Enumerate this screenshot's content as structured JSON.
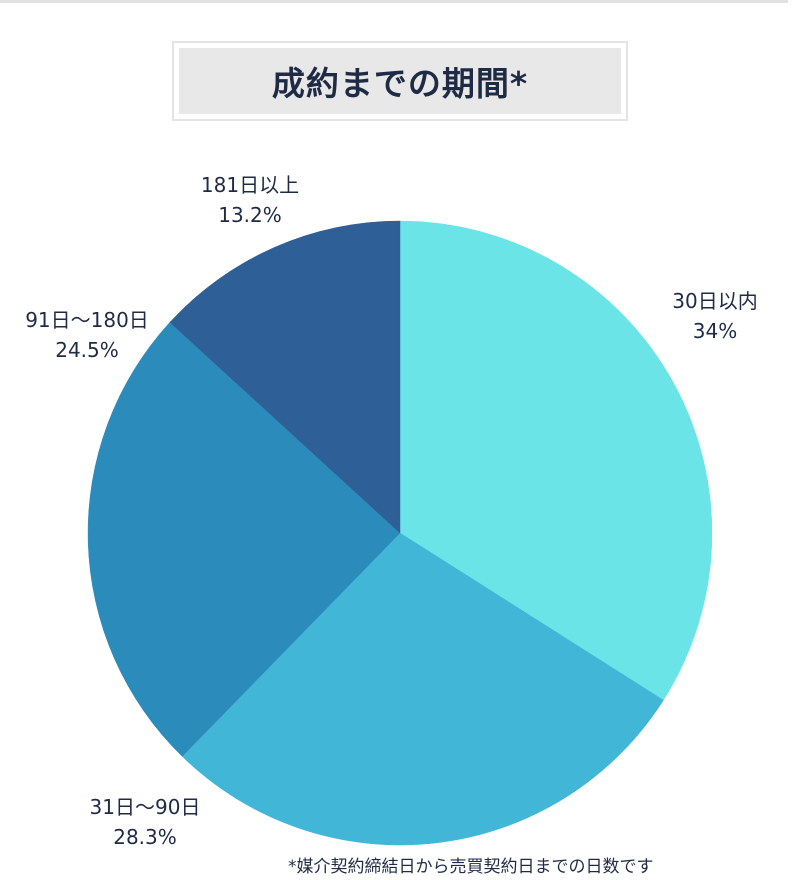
{
  "chart_data": {
    "type": "pie",
    "title": "成約までの期間*",
    "categories": [
      "30日以内",
      "31日〜90日",
      "91日〜180日",
      "181日以上"
    ],
    "values": [
      34,
      28.3,
      24.5,
      13.2
    ],
    "value_labels": [
      "34%",
      "28.3%",
      "24.5%",
      "13.2%"
    ],
    "colors": [
      "#6be4e8",
      "#42b6d7",
      "#2b8bbb",
      "#2f5f97"
    ],
    "start_angle_deg": 0,
    "direction": "clockwise",
    "footnote": "*媒介契約締結日から売買契約日までの日数です"
  }
}
